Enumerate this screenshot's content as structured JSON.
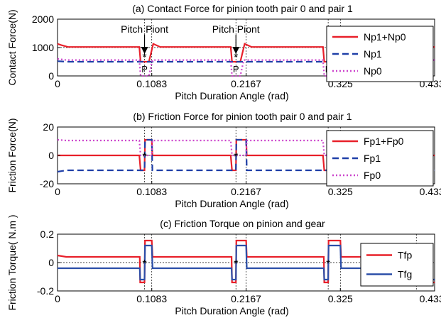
{
  "chart_data": [
    {
      "type": "line",
      "title": "(a) Contact Force for pinion tooth pair 0 and pair 1",
      "xlabel": "Pitch Duration Angle (rad)",
      "ylabel": "Contact Force(N)",
      "xlim": [
        0,
        0.4333
      ],
      "ylim": [
        0,
        2000
      ],
      "xticks": [
        0,
        0.1083,
        0.2167,
        0.325,
        0.4333
      ],
      "xtick_labels": [
        "0",
        "0.1083",
        "0.2167",
        "0.325",
        "0.4333"
      ],
      "yticks": [
        0,
        1000,
        2000
      ],
      "ytick_labels": [
        "0",
        "1000",
        "2000"
      ],
      "legend_position": "top-right",
      "series": [
        {
          "name": "Np1+Np0",
          "color": "#e8202a",
          "style": "solid",
          "x": [
            0,
            0.004,
            0.012,
            0.094,
            0.0955,
            0.105,
            0.11,
            0.118,
            0.199,
            0.2005,
            0.21,
            0.215,
            0.223,
            0.305,
            0.3065,
            0.316,
            0.321,
            0.329,
            0.4333
          ],
          "y": [
            1130,
            1090,
            1020,
            1020,
            500,
            500,
            1130,
            1020,
            1020,
            500,
            500,
            1130,
            1020,
            1020,
            500,
            500,
            1130,
            1020,
            1020
          ]
        },
        {
          "name": "Np1",
          "color": "#1f3fa8",
          "style": "dashed",
          "x": [
            0,
            0.01,
            0.4333
          ],
          "y": [
            520,
            500,
            500
          ]
        },
        {
          "name": "Np0",
          "color": "#cc44cc",
          "style": "dotted",
          "x": [
            0,
            0.01,
            0.094,
            0.0955,
            0.105,
            0.109,
            0.199,
            0.2005,
            0.21,
            0.214,
            0.305,
            0.3065,
            0.316,
            0.32,
            0.4333
          ],
          "y": [
            600,
            560,
            560,
            0,
            0,
            560,
            560,
            0,
            0,
            560,
            560,
            0,
            0,
            560,
            560
          ]
        }
      ],
      "annotations": [
        {
          "text": "Pitch Piont",
          "x": 0.1,
          "y": 1650
        },
        {
          "text": "Pitch Piont",
          "x": 0.205,
          "y": 1650
        },
        {
          "text": "P",
          "x": 0.1,
          "y": 250
        },
        {
          "text": "P",
          "x": 0.205,
          "y": 250
        },
        {
          "text": "P",
          "x": 0.311,
          "y": 250
        },
        {
          "text": "*",
          "x": 0.1,
          "y": 700
        },
        {
          "text": "*",
          "x": 0.205,
          "y": 700
        },
        {
          "text": "*",
          "x": 0.311,
          "y": 700
        }
      ],
      "vlines": [
        0.1,
        0.1083,
        0.205,
        0.2167,
        0.311,
        0.325
      ],
      "hline": 1000
    },
    {
      "type": "line",
      "title": "(b) Friction Force for pinion tooth pair 0 and pair 1",
      "xlabel": "Pitch Duration Angle (rad)",
      "ylabel": "Friction Force(N)",
      "xlim": [
        0,
        0.4333
      ],
      "ylim": [
        -20,
        20
      ],
      "xticks": [
        0,
        0.1083,
        0.2167,
        0.325,
        0.4333
      ],
      "xtick_labels": [
        "0",
        "0.1083",
        "0.2167",
        "0.325",
        "0.4333"
      ],
      "yticks": [
        -20,
        0,
        20
      ],
      "ytick_labels": [
        "-20",
        "0",
        "20"
      ],
      "legend_position": "top-right",
      "series": [
        {
          "name": "Fp1+Fp0",
          "color": "#e8202a",
          "style": "solid",
          "x": [
            0,
            0.094,
            0.0955,
            0.1,
            0.1005,
            0.1083,
            0.109,
            0.199,
            0.2005,
            0.205,
            0.2055,
            0.2167,
            0.2175,
            0.305,
            0.3065,
            0.311,
            0.3115,
            0.325,
            0.326,
            0.4333
          ],
          "y": [
            0,
            0,
            -10.5,
            -10.5,
            11,
            11,
            0,
            0,
            -10.5,
            -10.5,
            11,
            11,
            0,
            0,
            -10.5,
            -10.5,
            11,
            11,
            0,
            0
          ]
        },
        {
          "name": "Fp1",
          "color": "#1f3fa8",
          "style": "dashed",
          "x": [
            0,
            0.01,
            0.1,
            0.1005,
            0.1083,
            0.109,
            0.205,
            0.2055,
            0.2167,
            0.2175,
            0.311,
            0.3115,
            0.325,
            0.326,
            0.4333
          ],
          "y": [
            -11.5,
            -10.5,
            -10.5,
            11,
            11,
            -10.5,
            -10.5,
            11,
            11,
            -10.5,
            -10.5,
            11,
            11,
            -10.5,
            -10.5
          ]
        },
        {
          "name": "Fp0",
          "color": "#cc44cc",
          "style": "dotted",
          "x": [
            0,
            0.01,
            0.094,
            0.0955,
            0.1083,
            0.109,
            0.199,
            0.2005,
            0.2167,
            0.2175,
            0.305,
            0.3065,
            0.325,
            0.326,
            0.4333
          ],
          "y": [
            11,
            10.5,
            10.5,
            0,
            0,
            10.5,
            10.5,
            0,
            0,
            10.5,
            10.5,
            0,
            0,
            10.5,
            10.5
          ]
        }
      ],
      "annotations": [
        {
          "text": "*",
          "x": 0.1,
          "y": 0
        },
        {
          "text": "*",
          "x": 0.205,
          "y": 0
        },
        {
          "text": "*",
          "x": 0.311,
          "y": 0
        }
      ],
      "vlines": [
        0.1,
        0.1083,
        0.205,
        0.2167,
        0.311,
        0.325
      ],
      "hline": 0
    },
    {
      "type": "line",
      "title": "(c) Friction Torque on pinion and gear",
      "xlabel": "Pitch Duration Angle (rad)",
      "ylabel": "Friction Torque( N.m )",
      "xlim": [
        0,
        0.4333
      ],
      "ylim": [
        -0.2,
        0.2
      ],
      "xticks": [
        0,
        0.1083,
        0.2167,
        0.325,
        0.4333
      ],
      "xtick_labels": [
        "0",
        "0.1083",
        "0.2167",
        "0.325",
        "0.4333"
      ],
      "yticks": [
        -0.2,
        0,
        0.2
      ],
      "ytick_labels": [
        "-0.2",
        "0",
        "0.2"
      ],
      "legend_position": "top-right",
      "series": [
        {
          "name": "Tfp",
          "color": "#e8202a",
          "style": "solid",
          "x": [
            0,
            0.01,
            0.0945,
            0.095,
            0.1,
            0.1005,
            0.1083,
            0.1092,
            0.2,
            0.2005,
            0.205,
            0.2055,
            0.2167,
            0.2175,
            0.306,
            0.3065,
            0.311,
            0.3115,
            0.325,
            0.3258,
            0.4123,
            0.4128,
            0.4333
          ],
          "y": [
            0.05,
            0.04,
            0.04,
            -0.14,
            -0.14,
            0.155,
            0.155,
            0.04,
            0.04,
            -0.14,
            -0.14,
            0.155,
            0.155,
            0.04,
            0.04,
            -0.14,
            -0.14,
            0.155,
            0.155,
            0.04,
            0.04,
            -0.14,
            -0.14
          ]
        },
        {
          "name": "Tfg",
          "color": "#2b4ea8",
          "style": "solid",
          "x": [
            0,
            0.0945,
            0.095,
            0.1,
            0.1005,
            0.1083,
            0.1092,
            0.2,
            0.2005,
            0.205,
            0.2055,
            0.2167,
            0.2175,
            0.306,
            0.3065,
            0.311,
            0.3115,
            0.325,
            0.3258,
            0.4123,
            0.4128,
            0.4333
          ],
          "y": [
            -0.04,
            -0.04,
            -0.12,
            -0.12,
            0.12,
            0.12,
            -0.04,
            -0.04,
            -0.12,
            -0.12,
            0.12,
            0.12,
            -0.04,
            -0.04,
            -0.12,
            -0.12,
            0.12,
            0.12,
            -0.04,
            -0.04,
            -0.12,
            -0.12
          ]
        }
      ],
      "annotations": [
        {
          "text": "*",
          "x": 0.1,
          "y": 0
        },
        {
          "text": "*",
          "x": 0.205,
          "y": 0
        },
        {
          "text": "*",
          "x": 0.311,
          "y": 0
        }
      ],
      "vlines": [
        0.1,
        0.1083,
        0.205,
        0.2167,
        0.311,
        0.325,
        0.4123
      ],
      "hline": 0
    }
  ]
}
